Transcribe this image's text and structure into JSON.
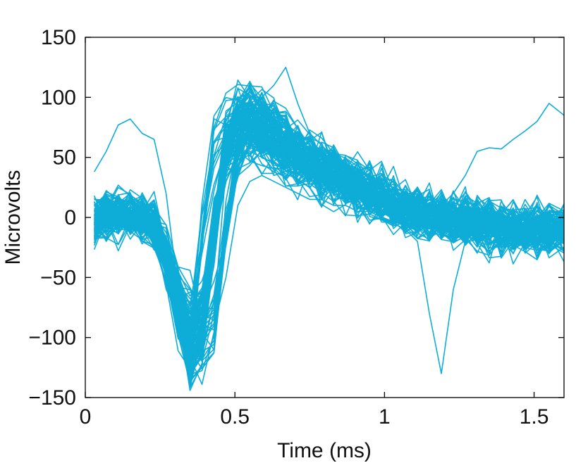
{
  "chart_data": {
    "type": "line",
    "title": "",
    "xlabel": "Time (ms)",
    "ylabel": "Microvolts",
    "xlim": [
      0,
      1.6
    ],
    "ylim": [
      -150,
      150
    ],
    "xticks": [
      0,
      0.5,
      1,
      1.5
    ],
    "xtick_labels": [
      "0",
      "0.5",
      "1",
      "1.5"
    ],
    "yticks": [
      -150,
      -100,
      -50,
      0,
      50,
      100,
      150
    ],
    "ytick_labels": [
      "−150",
      "−100",
      "−50",
      "0",
      "50",
      "100",
      "150"
    ],
    "grid": false,
    "legend": "none",
    "line_color": "#0eadd8",
    "waveform_count": 140,
    "x": [
      0.03,
      0.07,
      0.11,
      0.15,
      0.19,
      0.23,
      0.27,
      0.31,
      0.35,
      0.39,
      0.43,
      0.47,
      0.51,
      0.55,
      0.59,
      0.63,
      0.67,
      0.71,
      0.75,
      0.79,
      0.83,
      0.87,
      0.91,
      0.95,
      0.99,
      1.03,
      1.07,
      1.11,
      1.15,
      1.19,
      1.23,
      1.27,
      1.31,
      1.35,
      1.39,
      1.43,
      1.47,
      1.51,
      1.55,
      1.6
    ],
    "mean_waveform": [
      0,
      2,
      3,
      2,
      0,
      -5,
      -30,
      -65,
      -100,
      -85,
      -10,
      55,
      75,
      78,
      72,
      65,
      58,
      50,
      45,
      40,
      35,
      30,
      25,
      20,
      15,
      10,
      7,
      4,
      2,
      0,
      -2,
      -4,
      -6,
      -7,
      -8,
      -9,
      -9,
      -9,
      -8,
      -8
    ],
    "outlier_waveforms": [
      {
        "values": [
          38,
          55,
          77,
          82,
          70,
          65,
          20,
          -60,
          -100,
          -90,
          -20,
          60,
          90,
          95,
          80,
          70,
          60,
          50,
          45,
          40,
          30,
          25,
          20,
          15,
          10,
          5,
          0,
          -3,
          -5,
          -8,
          -10,
          -12,
          -15,
          -15,
          -13,
          -12,
          -10,
          -10,
          -8,
          -8
        ]
      },
      {
        "values": [
          0,
          -5,
          -3,
          0,
          -5,
          -10,
          -20,
          -55,
          -85,
          -120,
          -80,
          40,
          80,
          95,
          100,
          110,
          125,
          95,
          70,
          60,
          50,
          45,
          40,
          35,
          30,
          25,
          20,
          15,
          10,
          5,
          0,
          -5,
          -5,
          -8,
          -10,
          -10,
          -10,
          -12,
          -12,
          -12
        ]
      },
      {
        "values": [
          5,
          0,
          -5,
          -10,
          -10,
          -15,
          -30,
          -70,
          -100,
          -90,
          -40,
          50,
          80,
          75,
          65,
          55,
          45,
          40,
          35,
          30,
          20,
          15,
          10,
          5,
          0,
          -5,
          -10,
          -20,
          -80,
          -130,
          -60,
          -20,
          -10,
          -10,
          -10,
          -10,
          -10,
          -10,
          -10,
          -10
        ]
      },
      {
        "values": [
          -5,
          -8,
          -10,
          -10,
          -5,
          -10,
          -20,
          -60,
          -90,
          -105,
          -90,
          -50,
          10,
          30,
          35,
          30,
          25,
          20,
          15,
          15,
          10,
          10,
          5,
          5,
          5,
          0,
          0,
          0,
          5,
          10,
          20,
          35,
          55,
          58,
          57,
          65,
          72,
          80,
          95,
          85
        ]
      }
    ]
  }
}
